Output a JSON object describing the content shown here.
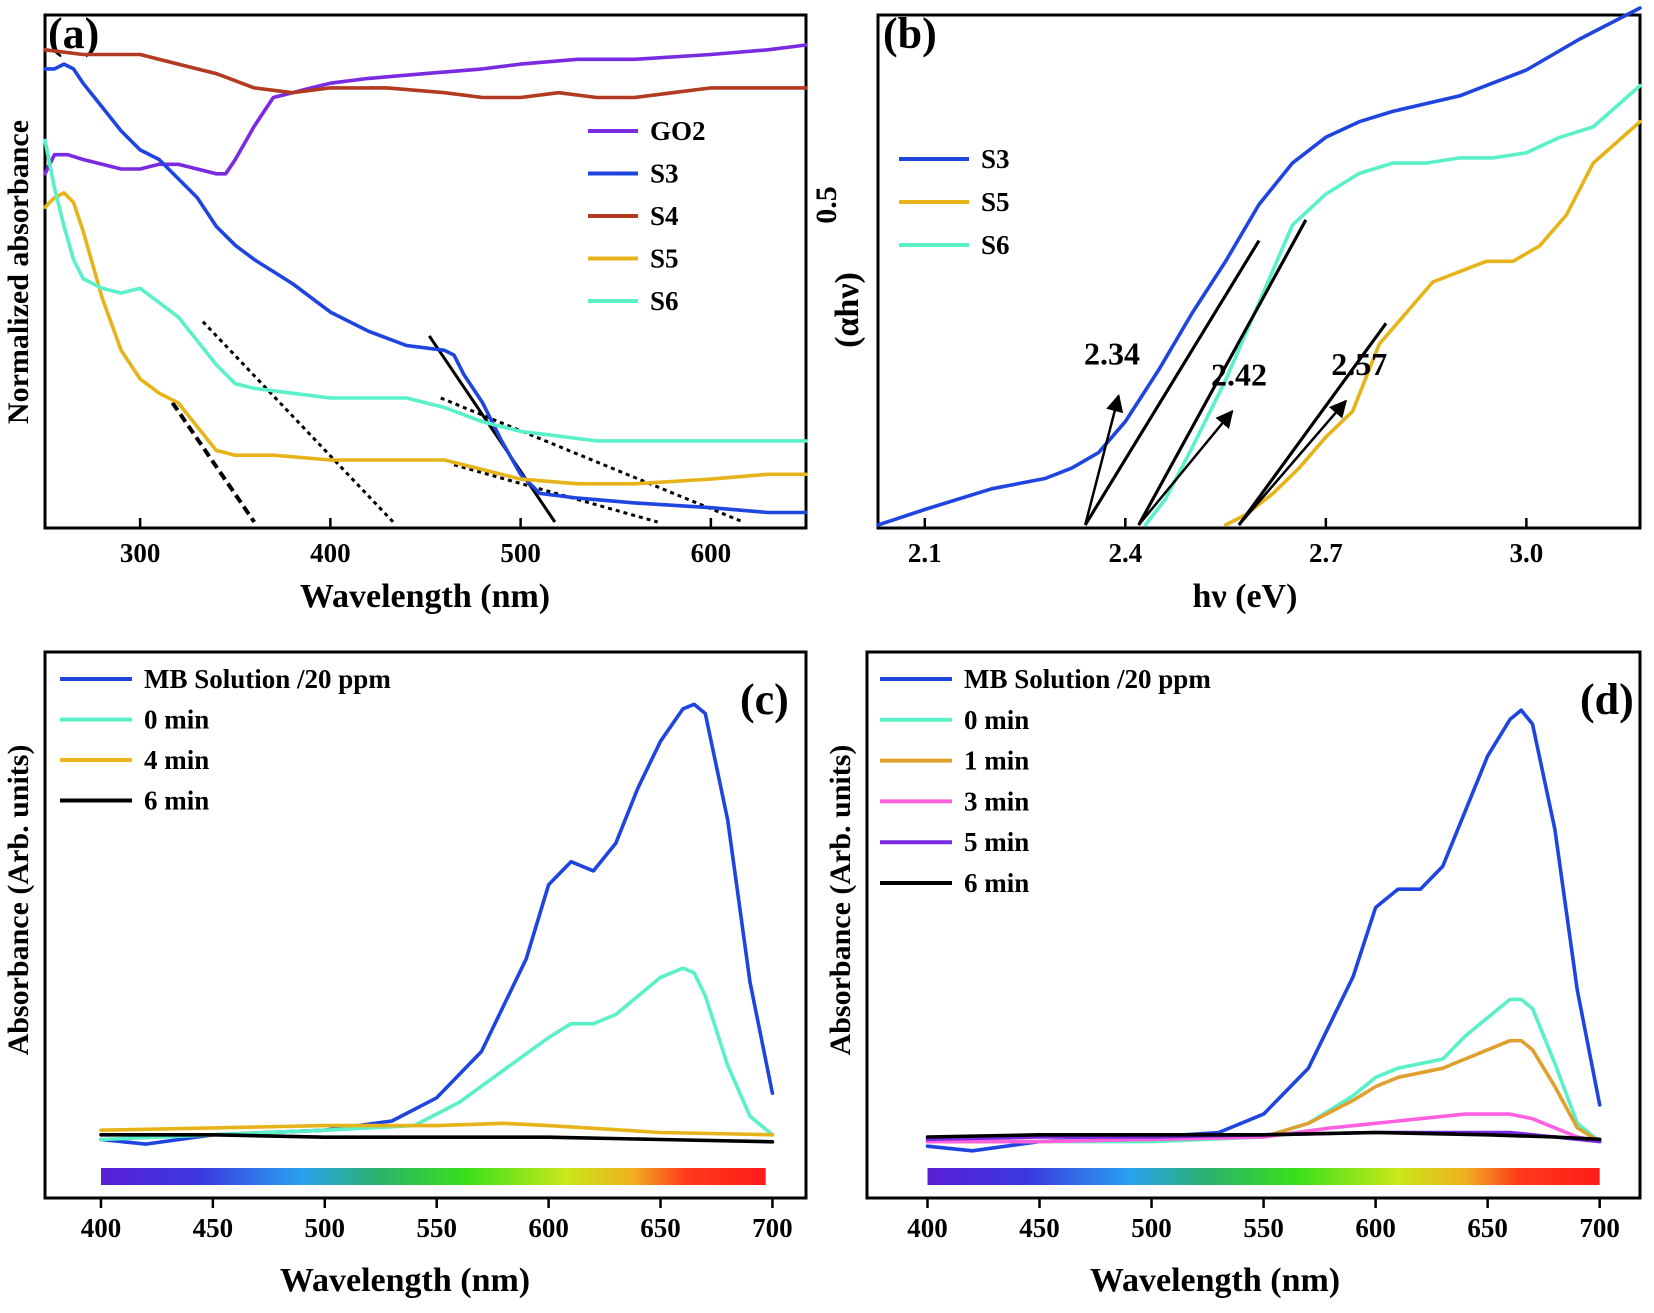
{
  "chart_data": [
    {
      "panel": "(a)",
      "type": "line",
      "xlabel": "Wavelength (nm)",
      "ylabel": "Normalized absorbance",
      "xlim": [
        250,
        650
      ],
      "xticks": [
        300,
        400,
        500,
        600
      ],
      "ylim": [
        0,
        1
      ],
      "legend_position": "top-right",
      "series": [
        {
          "name": "GO2",
          "color": "#7a2be2",
          "x": [
            250,
            255,
            262,
            270,
            280,
            290,
            300,
            310,
            320,
            330,
            340,
            345,
            350,
            360,
            370,
            380,
            390,
            400,
            420,
            450,
            480,
            500,
            530,
            560,
            600,
            630,
            650
          ],
          "y": [
            0.73,
            0.77,
            0.77,
            0.76,
            0.75,
            0.74,
            0.74,
            0.75,
            0.75,
            0.74,
            0.73,
            0.73,
            0.76,
            0.83,
            0.89,
            0.9,
            0.91,
            0.92,
            0.93,
            0.94,
            0.95,
            0.96,
            0.97,
            0.97,
            0.98,
            0.99,
            1.0
          ]
        },
        {
          "name": "S3",
          "color": "#1f45e0",
          "x": [
            250,
            255,
            260,
            265,
            270,
            280,
            290,
            300,
            310,
            320,
            330,
            340,
            350,
            360,
            380,
            400,
            420,
            440,
            460,
            465,
            470,
            480,
            490,
            500,
            510,
            530,
            560,
            600,
            630,
            650
          ],
          "y": [
            0.95,
            0.95,
            0.96,
            0.95,
            0.92,
            0.87,
            0.82,
            0.78,
            0.76,
            0.72,
            0.68,
            0.62,
            0.58,
            0.55,
            0.5,
            0.44,
            0.4,
            0.37,
            0.36,
            0.35,
            0.31,
            0.25,
            0.17,
            0.1,
            0.06,
            0.05,
            0.04,
            0.03,
            0.02,
            0.02
          ]
        },
        {
          "name": "S4",
          "color": "#b23a20",
          "x": [
            250,
            270,
            300,
            320,
            340,
            360,
            380,
            400,
            430,
            460,
            480,
            500,
            520,
            540,
            560,
            580,
            600,
            620,
            650
          ],
          "y": [
            0.99,
            0.98,
            0.98,
            0.96,
            0.94,
            0.91,
            0.9,
            0.91,
            0.91,
            0.9,
            0.89,
            0.89,
            0.9,
            0.89,
            0.89,
            0.9,
            0.91,
            0.91,
            0.91
          ]
        },
        {
          "name": "S5",
          "color": "#e6b41a",
          "x": [
            250,
            255,
            260,
            265,
            270,
            275,
            280,
            290,
            300,
            310,
            320,
            330,
            340,
            350,
            370,
            400,
            430,
            460,
            500,
            530,
            560,
            600,
            630,
            650
          ],
          "y": [
            0.66,
            0.68,
            0.69,
            0.67,
            0.61,
            0.54,
            0.47,
            0.36,
            0.3,
            0.27,
            0.25,
            0.2,
            0.15,
            0.14,
            0.14,
            0.13,
            0.13,
            0.13,
            0.09,
            0.08,
            0.08,
            0.09,
            0.1,
            0.1
          ]
        },
        {
          "name": "S6",
          "color": "#5af0c8",
          "x": [
            250,
            255,
            260,
            265,
            270,
            280,
            290,
            300,
            310,
            320,
            330,
            340,
            350,
            360,
            380,
            400,
            420,
            440,
            460,
            480,
            500,
            540,
            580,
            620,
            650
          ],
          "y": [
            0.8,
            0.7,
            0.62,
            0.55,
            0.51,
            0.49,
            0.48,
            0.49,
            0.46,
            0.43,
            0.38,
            0.33,
            0.29,
            0.28,
            0.27,
            0.26,
            0.26,
            0.26,
            0.24,
            0.21,
            0.19,
            0.17,
            0.17,
            0.17,
            0.17
          ]
        }
      ],
      "fit_lines": [
        {
          "style": "dashed",
          "x": [
            317,
            360
          ],
          "y": [
            0.25,
            0.0
          ]
        },
        {
          "style": "dotted",
          "x": [
            333,
            433
          ],
          "y": [
            0.42,
            0.0
          ]
        },
        {
          "style": "solid",
          "x": [
            452,
            518
          ],
          "y": [
            0.39,
            0.0
          ]
        },
        {
          "style": "dotted",
          "x": [
            458,
            617
          ],
          "y": [
            0.26,
            0.0
          ]
        },
        {
          "style": "dotted",
          "x": [
            465,
            572
          ],
          "y": [
            0.12,
            0.0
          ]
        }
      ]
    },
    {
      "panel": "(b)",
      "type": "line",
      "xlabel": "hν (eV)",
      "ylabel": "(αhν)",
      "ylabel_superscript": "0.5",
      "xlim": [
        2.03,
        3.17
      ],
      "xticks": [
        "2.1",
        "2.4",
        "2.7",
        "3.0"
      ],
      "ylim": [
        0,
        1
      ],
      "legend_position": "top-left",
      "series": [
        {
          "name": "S3",
          "color": "#1f45e0",
          "x": [
            2.03,
            2.1,
            2.2,
            2.28,
            2.32,
            2.36,
            2.4,
            2.45,
            2.5,
            2.55,
            2.6,
            2.65,
            2.7,
            2.75,
            2.8,
            2.9,
            3.0,
            3.08,
            3.17
          ],
          "y": [
            0.0,
            0.03,
            0.07,
            0.09,
            0.11,
            0.14,
            0.2,
            0.3,
            0.41,
            0.51,
            0.62,
            0.7,
            0.75,
            0.78,
            0.8,
            0.83,
            0.88,
            0.94,
            1.0
          ]
        },
        {
          "name": "S5",
          "color": "#e6b41a",
          "x": [
            2.55,
            2.58,
            2.62,
            2.66,
            2.7,
            2.74,
            2.78,
            2.82,
            2.86,
            2.9,
            2.94,
            2.98,
            3.02,
            3.06,
            3.1,
            3.17
          ],
          "y": [
            0.0,
            0.02,
            0.06,
            0.11,
            0.17,
            0.22,
            0.35,
            0.41,
            0.47,
            0.49,
            0.51,
            0.51,
            0.54,
            0.6,
            0.7,
            0.78
          ]
        },
        {
          "name": "S6",
          "color": "#5af0c8",
          "x": [
            2.43,
            2.46,
            2.5,
            2.55,
            2.6,
            2.65,
            2.7,
            2.75,
            2.8,
            2.85,
            2.9,
            2.95,
            3.0,
            3.05,
            3.1,
            3.17
          ],
          "y": [
            0.0,
            0.05,
            0.15,
            0.28,
            0.43,
            0.58,
            0.64,
            0.68,
            0.7,
            0.7,
            0.71,
            0.71,
            0.72,
            0.75,
            0.77,
            0.85
          ]
        }
      ],
      "fit_lines": [
        {
          "x": [
            2.34,
            2.6
          ],
          "y": [
            0.0,
            0.55
          ]
        },
        {
          "x": [
            2.42,
            2.67
          ],
          "y": [
            0.0,
            0.59
          ]
        },
        {
          "x": [
            2.57,
            2.79
          ],
          "y": [
            0.0,
            0.39
          ]
        }
      ],
      "annotations": [
        {
          "text": "2.34",
          "label_x": 2.38,
          "label_y": 0.31,
          "from_x": 2.34,
          "from_y": 0.0,
          "to_x": 2.39,
          "to_y": 0.25
        },
        {
          "text": "2.42",
          "label_x": 2.57,
          "label_y": 0.27,
          "from_x": 2.42,
          "from_y": 0.0,
          "to_x": 2.56,
          "to_y": 0.22
        },
        {
          "text": "2.57",
          "label_x": 2.75,
          "label_y": 0.29,
          "from_x": 2.57,
          "from_y": 0.0,
          "to_x": 2.73,
          "to_y": 0.24
        }
      ]
    },
    {
      "panel": "(c)",
      "type": "line",
      "xlabel": "Wavelength (nm)",
      "ylabel": "Absorbance (Arb. units)",
      "xlim": [
        375,
        715
      ],
      "xticks": [
        400,
        450,
        500,
        550,
        600,
        650,
        700
      ],
      "ylim": [
        0,
        1
      ],
      "legend_position": "top-left",
      "spectrum_bar": {
        "x_range": [
          400,
          697
        ]
      },
      "series": [
        {
          "name": "MB Solution /20 ppm",
          "color": "#1f45e0",
          "x": [
            400,
            420,
            450,
            500,
            530,
            550,
            570,
            590,
            600,
            610,
            620,
            630,
            640,
            650,
            660,
            665,
            670,
            680,
            690,
            700
          ],
          "y": [
            0.04,
            0.03,
            0.05,
            0.06,
            0.08,
            0.13,
            0.23,
            0.43,
            0.59,
            0.64,
            0.62,
            0.68,
            0.8,
            0.9,
            0.97,
            0.98,
            0.96,
            0.73,
            0.38,
            0.14
          ]
        },
        {
          "name": "0 min",
          "color": "#5af0c8",
          "x": [
            400,
            450,
            500,
            540,
            560,
            580,
            600,
            610,
            620,
            630,
            640,
            650,
            660,
            665,
            670,
            680,
            690,
            700
          ],
          "y": [
            0.04,
            0.05,
            0.06,
            0.07,
            0.12,
            0.19,
            0.26,
            0.29,
            0.29,
            0.31,
            0.35,
            0.39,
            0.41,
            0.4,
            0.35,
            0.2,
            0.09,
            0.05
          ]
        },
        {
          "name": "4 min",
          "color": "#e6b41a",
          "x": [
            400,
            450,
            500,
            550,
            580,
            600,
            650,
            700
          ],
          "y": [
            0.06,
            0.065,
            0.07,
            0.07,
            0.075,
            0.07,
            0.055,
            0.05
          ]
        },
        {
          "name": "6 min",
          "color": "#000000",
          "x": [
            400,
            450,
            500,
            550,
            600,
            650,
            700
          ],
          "y": [
            0.05,
            0.05,
            0.045,
            0.045,
            0.045,
            0.04,
            0.035
          ]
        }
      ]
    },
    {
      "panel": "(d)",
      "type": "line",
      "xlabel": "Wavelength (nm)",
      "ylabel": "Absorbance (Arb. units)",
      "xlim": [
        373,
        718
      ],
      "xticks": [
        400,
        450,
        500,
        550,
        600,
        650,
        700
      ],
      "ylim": [
        0,
        1
      ],
      "legend_position": "top-left",
      "spectrum_bar": {
        "x_range": [
          400,
          700
        ]
      },
      "series": [
        {
          "name": "MB Solution /20 ppm",
          "color": "#1f45e0",
          "x": [
            400,
            420,
            450,
            500,
            530,
            550,
            570,
            590,
            600,
            610,
            620,
            630,
            640,
            650,
            660,
            665,
            670,
            680,
            690,
            700
          ],
          "y": [
            0.03,
            0.02,
            0.04,
            0.05,
            0.06,
            0.1,
            0.2,
            0.4,
            0.55,
            0.59,
            0.59,
            0.64,
            0.76,
            0.88,
            0.96,
            0.98,
            0.95,
            0.72,
            0.37,
            0.12
          ]
        },
        {
          "name": "0 min",
          "color": "#5af0c8",
          "x": [
            400,
            450,
            500,
            550,
            570,
            590,
            600,
            610,
            620,
            630,
            640,
            650,
            660,
            665,
            670,
            680,
            690,
            700
          ],
          "y": [
            0.04,
            0.04,
            0.04,
            0.05,
            0.08,
            0.14,
            0.18,
            0.2,
            0.21,
            0.22,
            0.27,
            0.31,
            0.35,
            0.35,
            0.33,
            0.21,
            0.08,
            0.04
          ]
        },
        {
          "name": "1 min",
          "color": "#e0a030",
          "x": [
            400,
            450,
            500,
            550,
            570,
            590,
            600,
            610,
            620,
            630,
            640,
            650,
            660,
            665,
            670,
            680,
            690,
            700
          ],
          "y": [
            0.04,
            0.04,
            0.045,
            0.05,
            0.08,
            0.13,
            0.16,
            0.18,
            0.19,
            0.2,
            0.22,
            0.24,
            0.26,
            0.26,
            0.24,
            0.16,
            0.07,
            0.04
          ]
        },
        {
          "name": "3 min",
          "color": "#ff60e0",
          "x": [
            400,
            450,
            500,
            550,
            580,
            600,
            620,
            640,
            650,
            660,
            670,
            680,
            690,
            700
          ],
          "y": [
            0.04,
            0.04,
            0.045,
            0.05,
            0.07,
            0.08,
            0.09,
            0.1,
            0.1,
            0.1,
            0.09,
            0.07,
            0.05,
            0.04
          ]
        },
        {
          "name": "5 min",
          "color": "#7a2be2",
          "x": [
            400,
            450,
            500,
            550,
            600,
            640,
            660,
            680,
            700
          ],
          "y": [
            0.045,
            0.05,
            0.05,
            0.055,
            0.06,
            0.06,
            0.06,
            0.05,
            0.04
          ]
        },
        {
          "name": "6 min",
          "color": "#000000",
          "x": [
            400,
            450,
            500,
            550,
            600,
            650,
            680,
            700
          ],
          "y": [
            0.05,
            0.055,
            0.055,
            0.055,
            0.06,
            0.055,
            0.05,
            0.045
          ]
        }
      ]
    }
  ]
}
